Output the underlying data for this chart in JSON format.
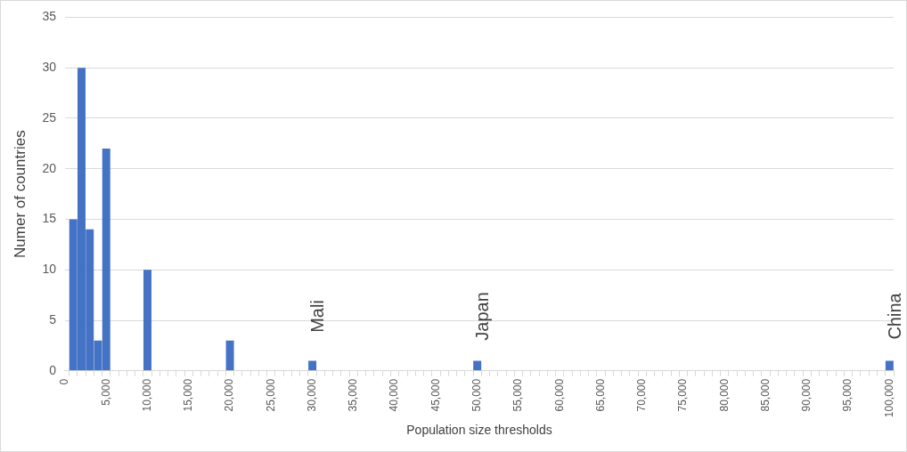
{
  "chart_data": {
    "type": "bar",
    "xlabel": "Population size thresholds",
    "ylabel": "Numer of countries",
    "x": [
      1000,
      2000,
      3000,
      4000,
      5000,
      10000,
      20000,
      30000,
      50000,
      100000
    ],
    "values": [
      15,
      30,
      14,
      3,
      22,
      10,
      3,
      1,
      1,
      1
    ],
    "color": "#4472c4",
    "xlim": [
      0,
      100500
    ],
    "xticks": [
      0,
      {
        "value": 1000,
        "label": null
      },
      {
        "value": 2000,
        "label": null
      },
      {
        "value": 3000,
        "label": null
      },
      {
        "value": 4000,
        "label": null
      },
      {
        "value": 5000,
        "label": "5,000"
      },
      {
        "value": 6000,
        "label": null
      },
      {
        "value": 7000,
        "label": null
      },
      {
        "value": 8000,
        "label": null
      },
      {
        "value": 9000,
        "label": null
      },
      {
        "value": 10000,
        "label": "10,000"
      },
      {
        "value": 11000,
        "label": null
      },
      {
        "value": 12000,
        "label": null
      },
      {
        "value": 13000,
        "label": null
      },
      {
        "value": 14000,
        "label": null
      },
      {
        "value": 15000,
        "label": "15,000"
      },
      {
        "value": 16000,
        "label": null
      },
      {
        "value": 17000,
        "label": null
      },
      {
        "value": 18000,
        "label": null
      },
      {
        "value": 19000,
        "label": null
      },
      {
        "value": 20000,
        "label": "20,000"
      },
      {
        "value": 21000,
        "label": null
      },
      {
        "value": 22000,
        "label": null
      },
      {
        "value": 23000,
        "label": null
      },
      {
        "value": 24000,
        "label": null
      },
      {
        "value": 25000,
        "label": "25,000"
      },
      {
        "value": 26000,
        "label": null
      },
      {
        "value": 27000,
        "label": null
      },
      {
        "value": 28000,
        "label": null
      },
      {
        "value": 29000,
        "label": null
      },
      {
        "value": 30000,
        "label": "30,000"
      },
      {
        "value": 31000,
        "label": null
      },
      {
        "value": 32000,
        "label": null
      },
      {
        "value": 33000,
        "label": null
      },
      {
        "value": 34000,
        "label": null
      },
      {
        "value": 35000,
        "label": "35,000"
      },
      {
        "value": 36000,
        "label": null
      },
      {
        "value": 37000,
        "label": null
      },
      {
        "value": 38000,
        "label": null
      },
      {
        "value": 39000,
        "label": null
      },
      {
        "value": 40000,
        "label": "40,000"
      },
      {
        "value": 41000,
        "label": null
      },
      {
        "value": 42000,
        "label": null
      },
      {
        "value": 43000,
        "label": null
      },
      {
        "value": 44000,
        "label": null
      },
      {
        "value": 45000,
        "label": "45,000"
      },
      {
        "value": 46000,
        "label": null
      },
      {
        "value": 47000,
        "label": null
      },
      {
        "value": 48000,
        "label": null
      },
      {
        "value": 49000,
        "label": null
      },
      {
        "value": 50000,
        "label": "50,000"
      },
      {
        "value": 51000,
        "label": null
      },
      {
        "value": 52000,
        "label": null
      },
      {
        "value": 53000,
        "label": null
      },
      {
        "value": 54000,
        "label": null
      },
      {
        "value": 55000,
        "label": "55,000"
      },
      {
        "value": 56000,
        "label": null
      },
      {
        "value": 57000,
        "label": null
      },
      {
        "value": 58000,
        "label": null
      },
      {
        "value": 59000,
        "label": null
      },
      {
        "value": 60000,
        "label": "60,000"
      },
      {
        "value": 61000,
        "label": null
      },
      {
        "value": 62000,
        "label": null
      },
      {
        "value": 63000,
        "label": null
      },
      {
        "value": 64000,
        "label": null
      },
      {
        "value": 65000,
        "label": "65,000"
      },
      {
        "value": 66000,
        "label": null
      },
      {
        "value": 67000,
        "label": null
      },
      {
        "value": 68000,
        "label": null
      },
      {
        "value": 69000,
        "label": null
      },
      {
        "value": 70000,
        "label": "70,000"
      },
      {
        "value": 71000,
        "label": null
      },
      {
        "value": 72000,
        "label": null
      },
      {
        "value": 73000,
        "label": null
      },
      {
        "value": 74000,
        "label": null
      },
      {
        "value": 75000,
        "label": "75,000"
      },
      {
        "value": 76000,
        "label": null
      },
      {
        "value": 77000,
        "label": null
      },
      {
        "value": 78000,
        "label": null
      },
      {
        "value": 79000,
        "label": null
      },
      {
        "value": 80000,
        "label": "80,000"
      },
      {
        "value": 81000,
        "label": null
      },
      {
        "value": 82000,
        "label": null
      },
      {
        "value": 83000,
        "label": null
      },
      {
        "value": 84000,
        "label": null
      },
      {
        "value": 85000,
        "label": "85,000"
      },
      {
        "value": 86000,
        "label": null
      },
      {
        "value": 87000,
        "label": null
      },
      {
        "value": 88000,
        "label": null
      },
      {
        "value": 89000,
        "label": null
      },
      {
        "value": 90000,
        "label": "90,000"
      },
      {
        "value": 91000,
        "label": null
      },
      {
        "value": 92000,
        "label": null
      },
      {
        "value": 93000,
        "label": null
      },
      {
        "value": 94000,
        "label": null
      },
      {
        "value": 95000,
        "label": "95,000"
      },
      {
        "value": 96000,
        "label": null
      },
      {
        "value": 97000,
        "label": null
      },
      {
        "value": 98000,
        "label": null
      },
      {
        "value": 99000,
        "label": null
      },
      {
        "value": 100000,
        "label": "100,000"
      }
    ],
    "ylim": [
      0,
      35
    ],
    "yticks": [
      0,
      5,
      10,
      15,
      20,
      25,
      30,
      35
    ],
    "grid": "y",
    "annotations": [
      {
        "text": "Mali",
        "x": 30000,
        "y": 1
      },
      {
        "text": "Japan",
        "x": 50000,
        "y": 1
      },
      {
        "text": "China",
        "x": 100000,
        "y": 1
      }
    ]
  }
}
